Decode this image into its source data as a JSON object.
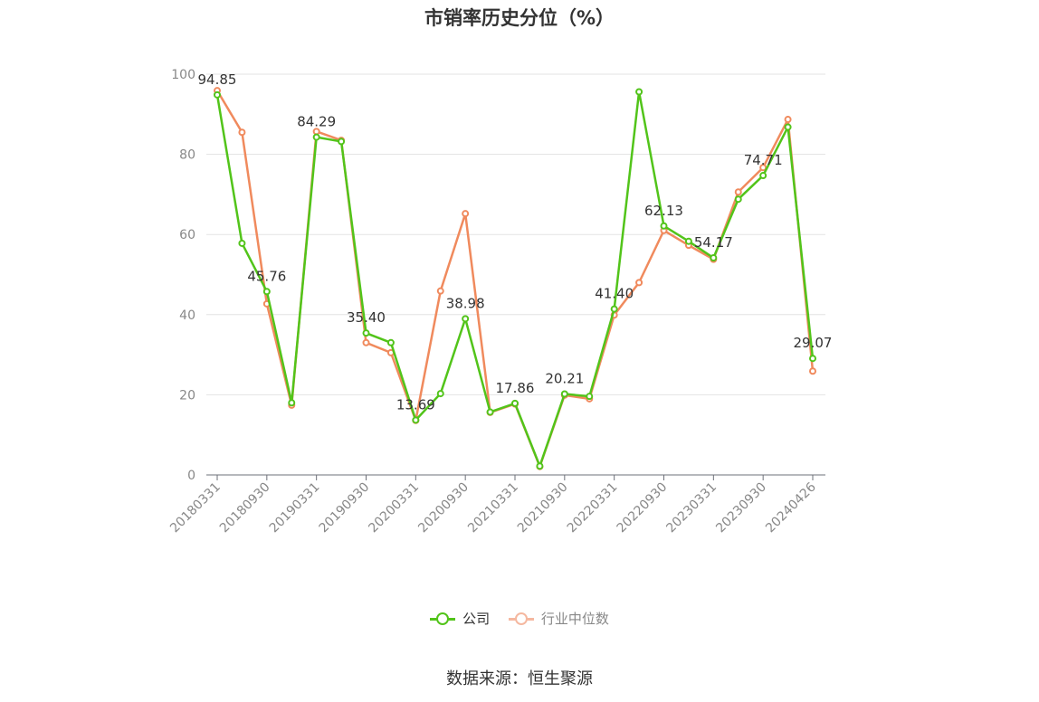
{
  "chart_data": {
    "type": "line",
    "title": "市销率历史分位（%）",
    "ylim": [
      0,
      100
    ],
    "yticks": [
      0,
      20,
      40,
      60,
      80,
      100
    ],
    "grid": true,
    "legend_position": "bottom",
    "x": [
      "20180331",
      "20180630",
      "20180930",
      "20181231",
      "20190331",
      "20190630",
      "20190930",
      "20191231",
      "20200331",
      "20200630",
      "20200930",
      "20201231",
      "20210331",
      "20210630",
      "20210930",
      "20211231",
      "20220331",
      "20220630",
      "20220930",
      "20221231",
      "20230331",
      "20230630",
      "20230930",
      "20231231",
      "20240426"
    ],
    "xtick_labels": [
      "20180331",
      "20180930",
      "20190331",
      "20190930",
      "20200331",
      "20200930",
      "20210331",
      "20210930",
      "20220331",
      "20220930",
      "20230331",
      "20230930",
      "20240426"
    ],
    "series": [
      {
        "name": "公司",
        "color": "#52c41a",
        "values": [
          94.85,
          57.8,
          45.76,
          18.0,
          84.29,
          83.2,
          35.4,
          33.0,
          13.69,
          20.3,
          38.98,
          15.7,
          17.86,
          2.2,
          20.21,
          19.6,
          41.4,
          95.6,
          62.13,
          58.3,
          54.17,
          68.8,
          74.71,
          86.8,
          29.07
        ],
        "labels": {
          "0": "94.85",
          "2": "45.76",
          "4": "84.29",
          "6": "35.40",
          "8": "13.69",
          "10": "38.98",
          "12": "17.86",
          "14": "20.21",
          "16": "41.40",
          "18": "62.13",
          "20": "54.17",
          "22": "74.71",
          "24": "29.07"
        }
      },
      {
        "name": "行业中位数",
        "color": "#f08a5d",
        "values": [
          95.9,
          85.5,
          42.7,
          17.4,
          85.7,
          83.5,
          33.0,
          30.5,
          13.6,
          45.9,
          65.2,
          15.6,
          17.7,
          2.1,
          19.9,
          19.0,
          39.9,
          48.0,
          61.0,
          57.3,
          53.8,
          70.6,
          76.7,
          88.7,
          25.9
        ]
      }
    ]
  },
  "source": "数据来源：恒生聚源"
}
